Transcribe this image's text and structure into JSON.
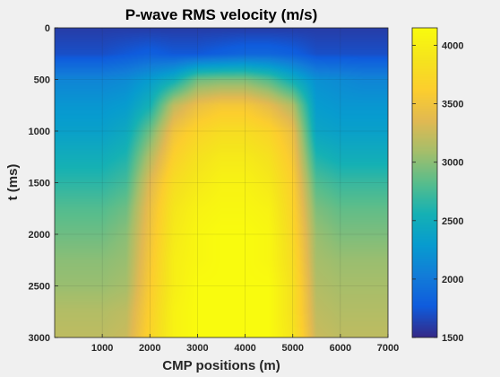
{
  "chart_data": {
    "type": "heatmap",
    "title": "P-wave RMS velocity (m/s)",
    "xlabel": "CMP positions (m)",
    "ylabel": "t (ms)",
    "xlim": [
      0,
      7000
    ],
    "ylim": [
      3000,
      0
    ],
    "x_ticks": [
      1000,
      2000,
      3000,
      4000,
      5000,
      6000,
      7000
    ],
    "y_ticks": [
      0,
      500,
      1000,
      1500,
      2000,
      2500,
      3000
    ],
    "grid": true,
    "colormap": "parula",
    "colorbar": {
      "placement": "right",
      "range": [
        1500,
        4150
      ],
      "ticks": [
        1500,
        2000,
        2500,
        3000,
        3500,
        4000
      ]
    },
    "x": [
      0,
      500,
      1000,
      1500,
      2000,
      2500,
      3000,
      3500,
      4000,
      4500,
      5000,
      5500,
      6000,
      6500,
      7000
    ],
    "t": [
      0,
      250,
      500,
      750,
      1000,
      1250,
      1500,
      1750,
      2000,
      2250,
      2500,
      2750,
      3000
    ],
    "values": [
      [
        1600,
        1600,
        1600,
        1600,
        1600,
        1600,
        1600,
        1600,
        1600,
        1600,
        1600,
        1600,
        1600,
        1600,
        1600
      ],
      [
        1700,
        1700,
        1700,
        1750,
        1800,
        1750,
        1750,
        1800,
        1850,
        1850,
        1800,
        1700,
        1700,
        1700,
        1700
      ],
      [
        2100,
        2100,
        2100,
        2150,
        2300,
        2500,
        2900,
        2950,
        2950,
        2800,
        2500,
        2200,
        2150,
        2100,
        2100
      ],
      [
        2250,
        2250,
        2250,
        2300,
        2550,
        3200,
        3450,
        3550,
        3550,
        3400,
        3150,
        2300,
        2250,
        2250,
        2250
      ],
      [
        2350,
        2350,
        2350,
        2450,
        2900,
        3500,
        3700,
        3800,
        3800,
        3700,
        3450,
        2400,
        2350,
        2350,
        2350
      ],
      [
        2500,
        2500,
        2500,
        2600,
        3150,
        3650,
        3850,
        3950,
        3950,
        3850,
        3550,
        2600,
        2500,
        2500,
        2500
      ],
      [
        2650,
        2650,
        2650,
        2750,
        3350,
        3800,
        3950,
        4050,
        4050,
        3950,
        3650,
        2800,
        2700,
        2700,
        2700
      ],
      [
        2800,
        2800,
        2800,
        2900,
        3450,
        3900,
        4050,
        4100,
        4100,
        4050,
        3700,
        2950,
        2850,
        2850,
        2850
      ],
      [
        2900,
        2900,
        2900,
        3000,
        3500,
        3950,
        4100,
        4150,
        4150,
        4100,
        3750,
        3050,
        2950,
        2950,
        2950
      ],
      [
        3000,
        3000,
        3000,
        3050,
        3550,
        4000,
        4100,
        4150,
        4150,
        4100,
        3800,
        3100,
        3050,
        3050,
        3050
      ],
      [
        3050,
        3050,
        3050,
        3100,
        3600,
        4000,
        4150,
        4150,
        4150,
        4150,
        3850,
        3150,
        3100,
        3100,
        3100
      ],
      [
        3150,
        3150,
        3150,
        3200,
        3650,
        4050,
        4150,
        4150,
        4150,
        4150,
        3850,
        3200,
        3150,
        3150,
        3150
      ],
      [
        3200,
        3200,
        3200,
        3250,
        3700,
        4050,
        4150,
        4150,
        4150,
        4150,
        3900,
        3250,
        3200,
        3200,
        3200
      ]
    ]
  }
}
